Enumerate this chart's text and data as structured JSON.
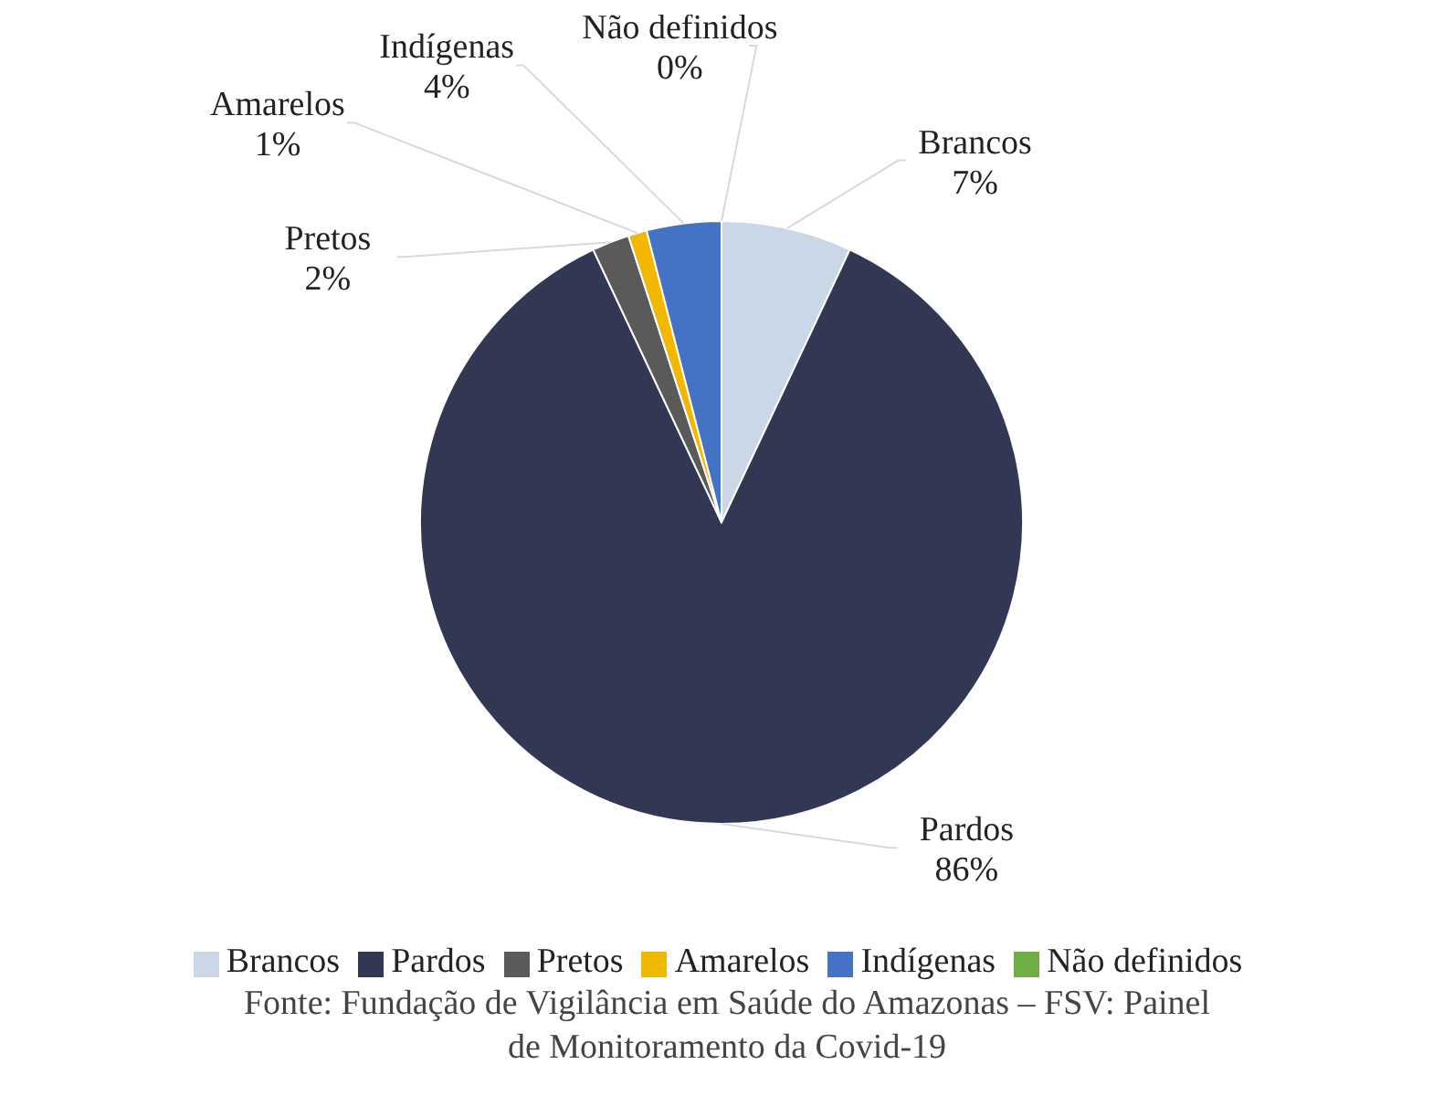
{
  "chart_data": {
    "type": "pie",
    "categories": [
      "Brancos",
      "Pardos",
      "Pretos",
      "Amarelos",
      "Indígenas",
      "Não definidos"
    ],
    "values": [
      7,
      86,
      2,
      1,
      4,
      0
    ],
    "colors": [
      "#c9d7e6",
      "#323754",
      "#5a5a5a",
      "#f2b800",
      "#4472c4",
      "#70ad47"
    ],
    "value_labels": [
      "7%",
      "86%",
      "2%",
      "1%",
      "4%",
      "0%"
    ],
    "legend": "bottom",
    "annotations": [
      "Fonte: Fundação de Vigilância em Saúde do Amazonas – FSV: Painel de Monitoramento da Covid-19"
    ]
  }
}
